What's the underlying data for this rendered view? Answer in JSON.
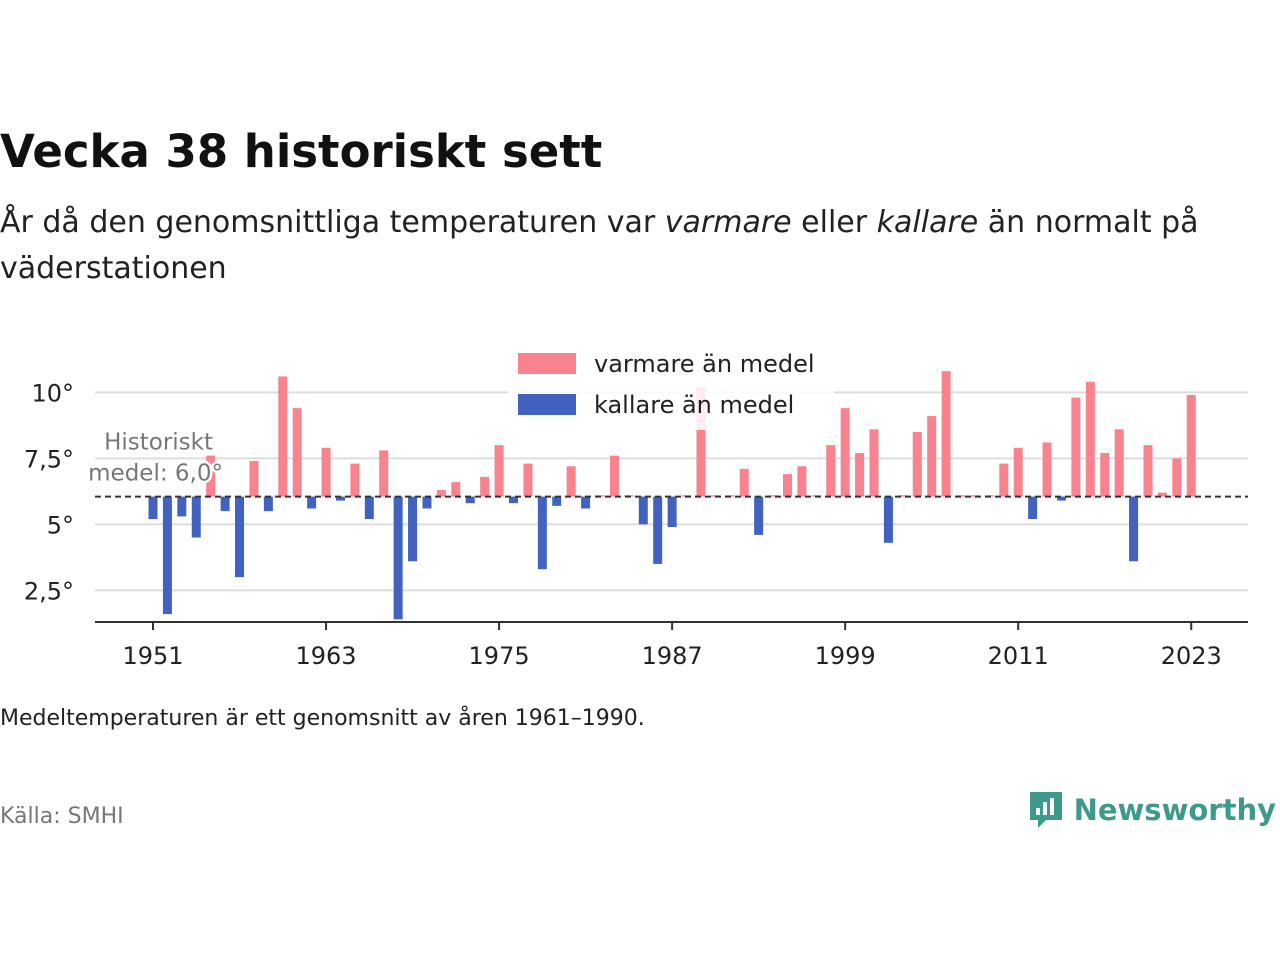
{
  "header": {
    "title": "Vecka 38 historiskt sett",
    "subtitle_pre": "År då den genomsnittliga temperaturen var ",
    "subtitle_warm": "varmare",
    "subtitle_mid": " eller ",
    "subtitle_cold": "kallare",
    "subtitle_post": " än normalt på väderstationen"
  },
  "footer": {
    "note": "Medeltemperaturen är ett genomsnitt av åren 1961–1990.",
    "source": "Källa: SMHI",
    "brand": "Newsworthy",
    "brand_icon": "newsworthy-logo-icon"
  },
  "colors": {
    "warm": "#f9828f",
    "cold": "#4262c0",
    "grid": "#dddddd",
    "axis": "#333333",
    "brand": "#3d9a8b"
  },
  "chart_data": {
    "type": "bar",
    "legend": {
      "placement": "top-center",
      "entries": [
        "varmare än medel",
        "kallare än medel"
      ]
    },
    "baseline": {
      "value": 6.05,
      "label_line1": "Historiskt",
      "label_line2": "medel: 6,0°"
    },
    "ylim": [
      1.3,
      11.3
    ],
    "yticks": [
      2.5,
      5,
      7.5,
      10
    ],
    "ytick_labels": [
      "2,5°",
      "5°",
      "7,5°",
      "10°"
    ],
    "xlim": [
      1947,
      2027
    ],
    "xticks": [
      1951,
      1963,
      1975,
      1987,
      1999,
      2011,
      2023
    ],
    "grid": true,
    "x": [
      1951,
      1952,
      1953,
      1954,
      1955,
      1956,
      1957,
      1958,
      1959,
      1960,
      1961,
      1962,
      1963,
      1964,
      1965,
      1966,
      1967,
      1968,
      1969,
      1970,
      1971,
      1972,
      1973,
      1974,
      1975,
      1976,
      1977,
      1978,
      1979,
      1980,
      1981,
      1982,
      1983,
      1984,
      1985,
      1986,
      1987,
      1988,
      1989,
      1990,
      1991,
      1992,
      1993,
      1994,
      1995,
      1996,
      1997,
      1998,
      1999,
      2000,
      2001,
      2002,
      2003,
      2004,
      2005,
      2006,
      2007,
      2008,
      2009,
      2010,
      2011,
      2012,
      2013,
      2014,
      2015,
      2016,
      2017,
      2018,
      2019,
      2020,
      2021,
      2022,
      2023
    ],
    "values": [
      5.2,
      1.6,
      5.3,
      4.5,
      7.6,
      5.5,
      3.0,
      7.4,
      5.5,
      10.6,
      9.4,
      5.6,
      7.9,
      5.9,
      7.3,
      5.2,
      7.8,
      1.4,
      3.6,
      5.6,
      6.3,
      6.6,
      5.8,
      6.8,
      8.0,
      5.8,
      7.3,
      3.3,
      5.7,
      7.2,
      5.6,
      6.1,
      7.6,
      6.1,
      5.0,
      3.5,
      4.9,
      6.1,
      10.2,
      6.1,
      6.1,
      7.1,
      4.6,
      6.1,
      6.9,
      7.2,
      6.1,
      8.0,
      9.4,
      7.7,
      8.6,
      4.3,
      6.1,
      8.5,
      9.1,
      10.8,
      6.1,
      6.1,
      6.1,
      7.3,
      7.9,
      5.2,
      8.1,
      5.9,
      9.8,
      10.4,
      7.7,
      8.6,
      3.6,
      8.0,
      6.2,
      7.5,
      9.9
    ]
  }
}
